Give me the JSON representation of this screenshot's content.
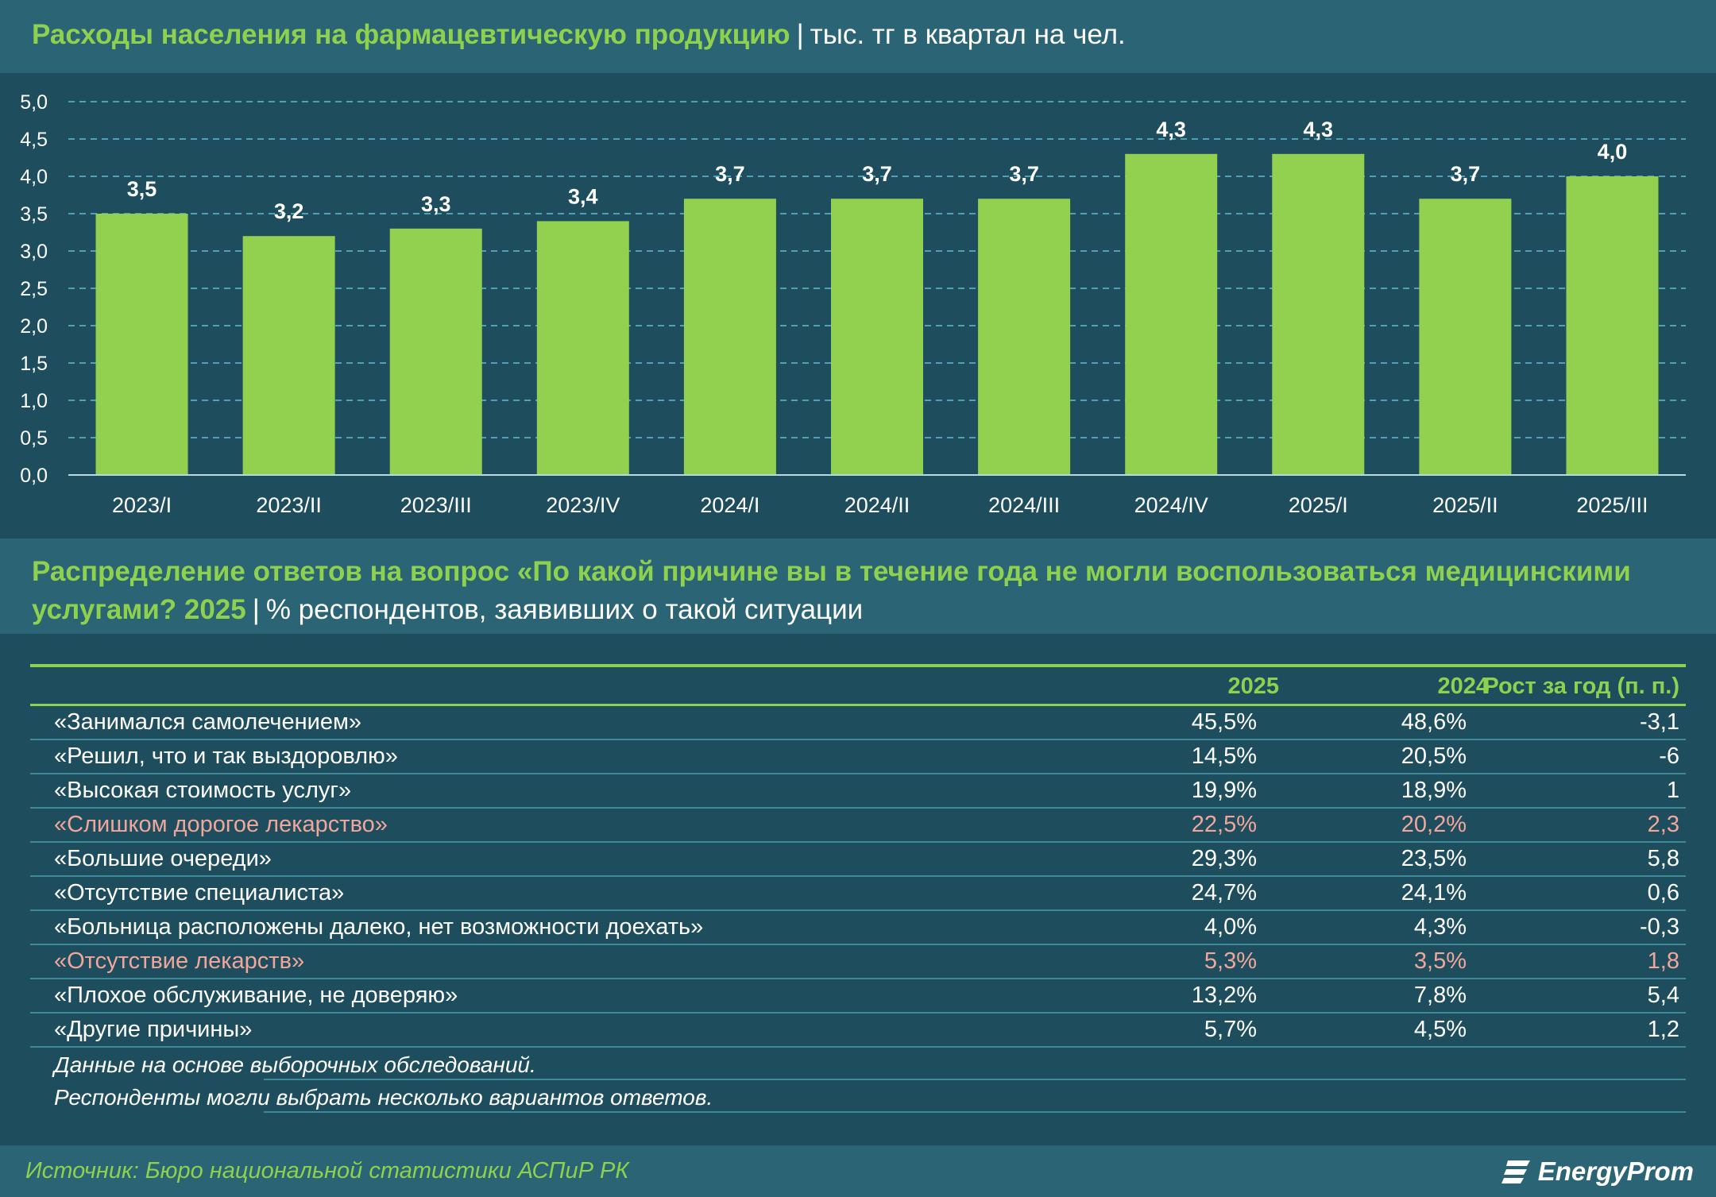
{
  "chart_title": {
    "main": "Расходы населения на фармацевтическую продукцию",
    "sep": "|",
    "unit": "тыс. тг в квартал на чел."
  },
  "chart_data": {
    "type": "bar",
    "categories": [
      "2023/I",
      "2023/II",
      "2023/III",
      "2023/IV",
      "2024/I",
      "2024/II",
      "2024/III",
      "2024/IV",
      "2025/I",
      "2025/II",
      "2025/III"
    ],
    "values": [
      3.5,
      3.2,
      3.3,
      3.4,
      3.7,
      3.7,
      3.7,
      4.3,
      4.3,
      3.7,
      4.0
    ],
    "value_labels": [
      "3,5",
      "3,2",
      "3,3",
      "3,4",
      "3,7",
      "3,7",
      "3,7",
      "4,3",
      "4,3",
      "3,7",
      "4,0"
    ],
    "y_ticks": [
      "0,0",
      "0,5",
      "1,0",
      "1,5",
      "2,0",
      "2,5",
      "3,0",
      "3,5",
      "4,0",
      "4,5",
      "5,0"
    ],
    "ylim": [
      0,
      5
    ],
    "grid": true,
    "bar_color": "#92d050",
    "title": "Расходы населения на фармацевтическую продукцию",
    "ylabel": "тыс. тг в квартал на чел."
  },
  "table_title": {
    "main": "Распределение ответов на вопрос «По какой причине вы в течение года не могли воспользоваться медицинскими услугами? 2025",
    "sep": "|",
    "unit": "% респондентов, заявивших о такой ситуации"
  },
  "table": {
    "headers": [
      "",
      "2025",
      "2024",
      "Рост за год (п. п.)"
    ],
    "rows": [
      {
        "label": "«Занимался самолечением»",
        "v2025": "45,5%",
        "v2024": "48,6%",
        "growth": "-3,1"
      },
      {
        "label": "«Решил, что и так выздоровлю»",
        "v2025": "14,5%",
        "v2024": "20,5%",
        "growth": "-6"
      },
      {
        "label": "«Высокая стоимость услуг»",
        "v2025": "19,9%",
        "v2024": "18,9%",
        "growth": "1"
      },
      {
        "label": "«Слишком дорогое лекарство»",
        "v2025": "22,5%",
        "v2024": "20,2%",
        "growth": "2,3"
      },
      {
        "label": "«Большие очереди»",
        "v2025": "29,3%",
        "v2024": "23,5%",
        "growth": "5,8"
      },
      {
        "label": "«Отсутствие специалиста»",
        "v2025": "24,7%",
        "v2024": "24,1%",
        "growth": "0,6"
      },
      {
        "label": "«Больница расположены далеко, нет возможности доехать»",
        "v2025": "4,0%",
        "v2024": "4,3%",
        "growth": "-0,3"
      },
      {
        "label": "«Отсутствие лекарств»",
        "v2025": "5,3%",
        "v2024": "3,5%",
        "growth": "1,8"
      },
      {
        "label": "«Плохое обслуживание, не доверяю»",
        "v2025": "13,2%",
        "v2024": "7,8%",
        "growth": "5,4"
      },
      {
        "label": "«Другие причины»",
        "v2025": "5,7%",
        "v2024": "4,5%",
        "growth": "1,2"
      }
    ],
    "notes": [
      "Данные на основе выборочных обследований.",
      "Респонденты могли выбрать несколько вариантов ответов."
    ],
    "highlight_color": "#f1a69b"
  },
  "footer": {
    "source": "Источник: Бюро национальной статистики АСПиР РК",
    "brand": "EnergyProm",
    "brand_icon": "energyprom-logo-icon"
  },
  "colors": {
    "background": "#1e4e5e",
    "title_band": "#2b6474",
    "accent_green": "#8ed14f",
    "grid": "#4fa2b4"
  }
}
